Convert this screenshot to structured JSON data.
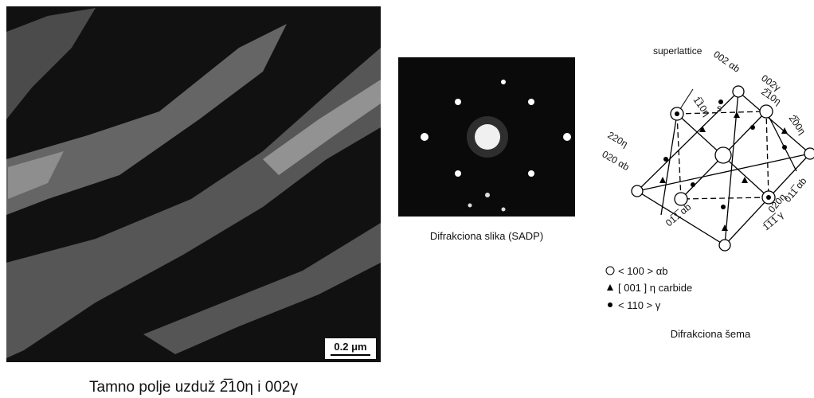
{
  "micrograph": {
    "scale_bar": "0.2 μm",
    "caption": "Tamno polje uzduž 2̅10η i 002γ"
  },
  "sadp": {
    "caption": "Difrakciona slika (SADP)"
  },
  "schema": {
    "labels": [
      "superlattice",
      "002 αb",
      "002γ",
      "2̅10η",
      "1̅10η",
      "s",
      "2̅00η",
      "220η",
      "020 αb",
      "011̅ αb",
      "01̅1̅ αb",
      "020η",
      "1̅1̅1̅ γ"
    ],
    "legend": [
      "< 100 > αb",
      "[ 001 ] η carbide",
      "< 110 > γ"
    ],
    "caption": "Difrakciona šema"
  }
}
